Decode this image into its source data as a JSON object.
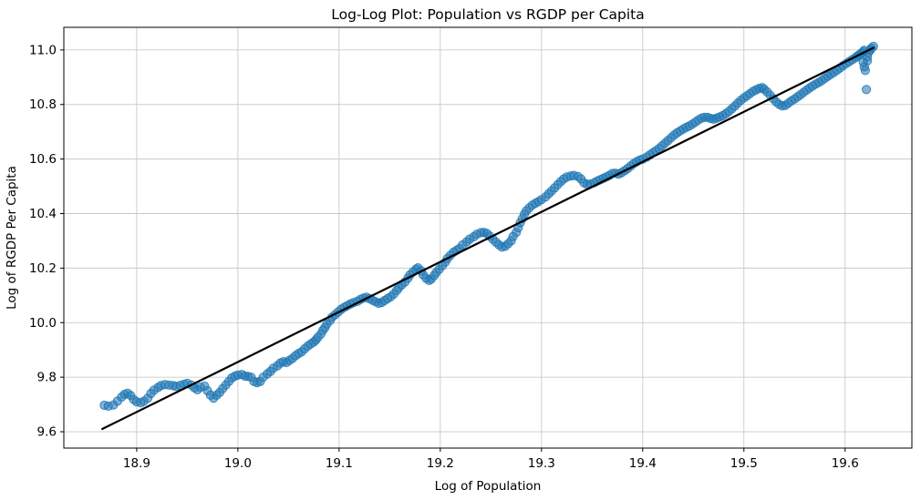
{
  "chart_data": {
    "type": "scatter",
    "title": "Log-Log Plot: Population vs RGDP per Capita",
    "xlabel": "Log of Population",
    "ylabel": "Log of RGDP Per Capita",
    "xlim": [
      18.828,
      19.666
    ],
    "ylim": [
      9.54,
      11.083
    ],
    "x_ticks": [
      18.9,
      19.0,
      19.1,
      19.2,
      19.3,
      19.4,
      19.5,
      19.6
    ],
    "x_tick_labels": [
      "18.9",
      "19.0",
      "19.1",
      "19.2",
      "19.3",
      "19.4",
      "19.5",
      "19.6"
    ],
    "y_ticks": [
      9.6,
      9.8,
      10.0,
      10.2,
      10.4,
      10.6,
      10.8,
      11.0
    ],
    "y_tick_labels": [
      "9.6",
      "9.8",
      "10.0",
      "10.2",
      "10.4",
      "10.6",
      "10.8",
      "11.0"
    ],
    "grid": true,
    "legend": "none",
    "colors": {
      "scatter": "#1f77b4",
      "trend_line": "#000000",
      "grid": "#c9c9c9",
      "spine": "#000000",
      "background": "#ffffff"
    },
    "marker": {
      "radius": 4.6,
      "fill_opacity": 0.55,
      "edge_opacity": 0.85
    },
    "series": [
      {
        "name": "observations",
        "kind": "scatter",
        "points": [
          [
            18.868,
            9.697
          ],
          [
            18.872,
            9.694
          ],
          [
            18.877,
            9.698
          ],
          [
            18.881,
            9.712
          ],
          [
            18.885,
            9.727
          ],
          [
            18.888,
            9.737
          ],
          [
            18.891,
            9.741
          ],
          [
            18.894,
            9.733
          ],
          [
            18.897,
            9.718
          ],
          [
            18.9,
            9.71
          ],
          [
            18.904,
            9.706
          ],
          [
            18.907,
            9.712
          ],
          [
            18.911,
            9.723
          ],
          [
            18.914,
            9.74
          ],
          [
            18.917,
            9.752
          ],
          [
            18.921,
            9.762
          ],
          [
            18.924,
            9.769
          ],
          [
            18.928,
            9.773
          ],
          [
            18.932,
            9.771
          ],
          [
            18.936,
            9.769
          ],
          [
            18.939,
            9.766
          ],
          [
            18.943,
            9.77
          ],
          [
            18.947,
            9.774
          ],
          [
            18.95,
            9.777
          ],
          [
            18.954,
            9.771
          ],
          [
            18.957,
            9.761
          ],
          [
            18.96,
            9.754
          ],
          [
            18.963,
            9.763
          ],
          [
            18.967,
            9.767
          ],
          [
            18.97,
            9.75
          ],
          [
            18.973,
            9.734
          ],
          [
            18.976,
            9.723
          ],
          [
            18.979,
            9.734
          ],
          [
            18.982,
            9.744
          ],
          [
            18.985,
            9.758
          ],
          [
            18.988,
            9.771
          ],
          [
            18.991,
            9.784
          ],
          [
            18.994,
            9.797
          ],
          [
            18.997,
            9.804
          ],
          [
            19.0,
            9.808
          ],
          [
            19.004,
            9.81
          ],
          [
            19.007,
            9.804
          ],
          [
            19.01,
            9.803
          ],
          [
            19.013,
            9.8
          ],
          [
            19.016,
            9.784
          ],
          [
            19.019,
            9.78
          ],
          [
            19.022,
            9.784
          ],
          [
            19.025,
            9.8
          ],
          [
            19.029,
            9.812
          ],
          [
            19.032,
            9.821
          ],
          [
            19.035,
            9.833
          ],
          [
            19.039,
            9.842
          ],
          [
            19.042,
            9.852
          ],
          [
            19.045,
            9.857
          ],
          [
            19.048,
            9.854
          ],
          [
            19.051,
            9.862
          ],
          [
            19.054,
            9.869
          ],
          [
            19.057,
            9.879
          ],
          [
            19.06,
            9.887
          ],
          [
            19.063,
            9.893
          ],
          [
            19.066,
            9.904
          ],
          [
            19.069,
            9.914
          ],
          [
            19.072,
            9.922
          ],
          [
            19.075,
            9.929
          ],
          [
            19.077,
            9.936
          ],
          [
            19.079,
            9.946
          ],
          [
            19.082,
            9.958
          ],
          [
            19.084,
            9.972
          ],
          [
            19.086,
            9.982
          ],
          [
            19.088,
            9.995
          ],
          [
            19.091,
            10.008
          ],
          [
            19.093,
            10.02
          ],
          [
            19.096,
            10.029
          ],
          [
            19.099,
            10.039
          ],
          [
            19.102,
            10.049
          ],
          [
            19.105,
            10.056
          ],
          [
            19.108,
            10.062
          ],
          [
            19.111,
            10.068
          ],
          [
            19.114,
            10.073
          ],
          [
            19.118,
            10.078
          ],
          [
            19.121,
            10.085
          ],
          [
            19.124,
            10.09
          ],
          [
            19.127,
            10.093
          ],
          [
            19.13,
            10.088
          ],
          [
            19.133,
            10.082
          ],
          [
            19.136,
            10.077
          ],
          [
            19.139,
            10.071
          ],
          [
            19.142,
            10.074
          ],
          [
            19.145,
            10.081
          ],
          [
            19.148,
            10.088
          ],
          [
            19.151,
            10.095
          ],
          [
            19.154,
            10.105
          ],
          [
            19.157,
            10.118
          ],
          [
            19.159,
            10.128
          ],
          [
            19.162,
            10.139
          ],
          [
            19.165,
            10.149
          ],
          [
            19.168,
            10.163
          ],
          [
            19.17,
            10.175
          ],
          [
            19.173,
            10.186
          ],
          [
            19.176,
            10.196
          ],
          [
            19.178,
            10.201
          ],
          [
            19.181,
            10.19
          ],
          [
            19.183,
            10.176
          ],
          [
            19.186,
            10.163
          ],
          [
            19.189,
            10.155
          ],
          [
            19.191,
            10.16
          ],
          [
            19.194,
            10.173
          ],
          [
            19.196,
            10.184
          ],
          [
            19.199,
            10.196
          ],
          [
            19.202,
            10.209
          ],
          [
            19.205,
            10.222
          ],
          [
            19.207,
            10.235
          ],
          [
            19.21,
            10.247
          ],
          [
            19.213,
            10.258
          ],
          [
            19.216,
            10.265
          ],
          [
            19.219,
            10.272
          ],
          [
            19.222,
            10.285
          ],
          [
            19.226,
            10.296
          ],
          [
            19.229,
            10.306
          ],
          [
            19.233,
            10.315
          ],
          [
            19.236,
            10.324
          ],
          [
            19.24,
            10.33
          ],
          [
            19.243,
            10.331
          ],
          [
            19.246,
            10.327
          ],
          [
            19.249,
            10.317
          ],
          [
            19.252,
            10.306
          ],
          [
            19.255,
            10.295
          ],
          [
            19.258,
            10.285
          ],
          [
            19.261,
            10.277
          ],
          [
            19.264,
            10.28
          ],
          [
            19.267,
            10.289
          ],
          [
            19.27,
            10.3
          ],
          [
            19.272,
            10.316
          ],
          [
            19.275,
            10.331
          ],
          [
            19.277,
            10.348
          ],
          [
            19.279,
            10.366
          ],
          [
            19.281,
            10.381
          ],
          [
            19.283,
            10.397
          ],
          [
            19.285,
            10.41
          ],
          [
            19.288,
            10.421
          ],
          [
            19.291,
            10.431
          ],
          [
            19.294,
            10.438
          ],
          [
            19.297,
            10.444
          ],
          [
            19.3,
            10.451
          ],
          [
            19.304,
            10.461
          ],
          [
            19.307,
            10.472
          ],
          [
            19.31,
            10.483
          ],
          [
            19.313,
            10.494
          ],
          [
            19.316,
            10.506
          ],
          [
            19.319,
            10.517
          ],
          [
            19.322,
            10.527
          ],
          [
            19.325,
            10.534
          ],
          [
            19.329,
            10.538
          ],
          [
            19.332,
            10.54
          ],
          [
            19.336,
            10.536
          ],
          [
            19.339,
            10.527
          ],
          [
            19.342,
            10.513
          ],
          [
            19.345,
            10.507
          ],
          [
            19.348,
            10.508
          ],
          [
            19.352,
            10.513
          ],
          [
            19.355,
            10.519
          ],
          [
            19.358,
            10.524
          ],
          [
            19.361,
            10.529
          ],
          [
            19.364,
            10.534
          ],
          [
            19.367,
            10.54
          ],
          [
            19.37,
            10.547
          ],
          [
            19.373,
            10.548
          ],
          [
            19.376,
            10.545
          ],
          [
            19.379,
            10.55
          ],
          [
            19.382,
            10.557
          ],
          [
            19.385,
            10.565
          ],
          [
            19.388,
            10.574
          ],
          [
            19.391,
            10.583
          ],
          [
            19.394,
            10.59
          ],
          [
            19.397,
            10.596
          ],
          [
            19.4,
            10.6
          ],
          [
            19.404,
            10.607
          ],
          [
            19.407,
            10.615
          ],
          [
            19.41,
            10.623
          ],
          [
            19.413,
            10.63
          ],
          [
            19.416,
            10.638
          ],
          [
            19.419,
            10.648
          ],
          [
            19.422,
            10.658
          ],
          [
            19.425,
            10.668
          ],
          [
            19.428,
            10.678
          ],
          [
            19.431,
            10.688
          ],
          [
            19.434,
            10.696
          ],
          [
            19.437,
            10.703
          ],
          [
            19.44,
            10.71
          ],
          [
            19.443,
            10.716
          ],
          [
            19.446,
            10.721
          ],
          [
            19.449,
            10.728
          ],
          [
            19.452,
            10.735
          ],
          [
            19.455,
            10.743
          ],
          [
            19.458,
            10.75
          ],
          [
            19.461,
            10.753
          ],
          [
            19.464,
            10.753
          ],
          [
            19.467,
            10.749
          ],
          [
            19.47,
            10.746
          ],
          [
            19.473,
            10.75
          ],
          [
            19.476,
            10.754
          ],
          [
            19.479,
            10.759
          ],
          [
            19.482,
            10.766
          ],
          [
            19.485,
            10.774
          ],
          [
            19.488,
            10.784
          ],
          [
            19.491,
            10.794
          ],
          [
            19.494,
            10.805
          ],
          [
            19.497,
            10.815
          ],
          [
            19.5,
            10.824
          ],
          [
            19.503,
            10.832
          ],
          [
            19.506,
            10.84
          ],
          [
            19.509,
            10.848
          ],
          [
            19.512,
            10.854
          ],
          [
            19.515,
            10.859
          ],
          [
            19.518,
            10.862
          ],
          [
            19.52,
            10.856
          ],
          [
            19.523,
            10.846
          ],
          [
            19.526,
            10.834
          ],
          [
            19.529,
            10.821
          ],
          [
            19.532,
            10.809
          ],
          [
            19.535,
            10.8
          ],
          [
            19.538,
            10.795
          ],
          [
            19.541,
            10.797
          ],
          [
            19.544,
            10.805
          ],
          [
            19.547,
            10.813
          ],
          [
            19.55,
            10.82
          ],
          [
            19.553,
            10.828
          ],
          [
            19.556,
            10.836
          ],
          [
            19.559,
            10.845
          ],
          [
            19.562,
            10.853
          ],
          [
            19.565,
            10.861
          ],
          [
            19.568,
            10.868
          ],
          [
            19.571,
            10.875
          ],
          [
            19.574,
            10.881
          ],
          [
            19.577,
            10.888
          ],
          [
            19.58,
            10.896
          ],
          [
            19.583,
            10.904
          ],
          [
            19.586,
            10.911
          ],
          [
            19.589,
            10.918
          ],
          [
            19.592,
            10.926
          ],
          [
            19.595,
            10.934
          ],
          [
            19.598,
            10.942
          ],
          [
            19.601,
            10.95
          ],
          [
            19.604,
            10.957
          ],
          [
            19.607,
            10.964
          ],
          [
            19.61,
            10.971
          ],
          [
            19.612,
            10.977
          ],
          [
            19.614,
            10.982
          ],
          [
            19.616,
            10.988
          ],
          [
            19.618,
            10.993
          ],
          [
            19.619,
            10.999
          ],
          [
            19.618,
            10.955
          ],
          [
            19.619,
            10.938
          ],
          [
            19.62,
            10.925
          ],
          [
            19.621,
            10.855
          ],
          [
            19.622,
            10.96
          ],
          [
            19.622,
            10.975
          ],
          [
            19.623,
            10.99
          ],
          [
            19.625,
            11.0
          ],
          [
            19.626,
            11.007
          ],
          [
            19.628,
            11.013
          ]
        ]
      },
      {
        "name": "fit-line",
        "kind": "line",
        "width": 2.2,
        "points": [
          [
            18.866,
            9.61
          ],
          [
            19.628,
            11.008
          ]
        ]
      }
    ]
  }
}
